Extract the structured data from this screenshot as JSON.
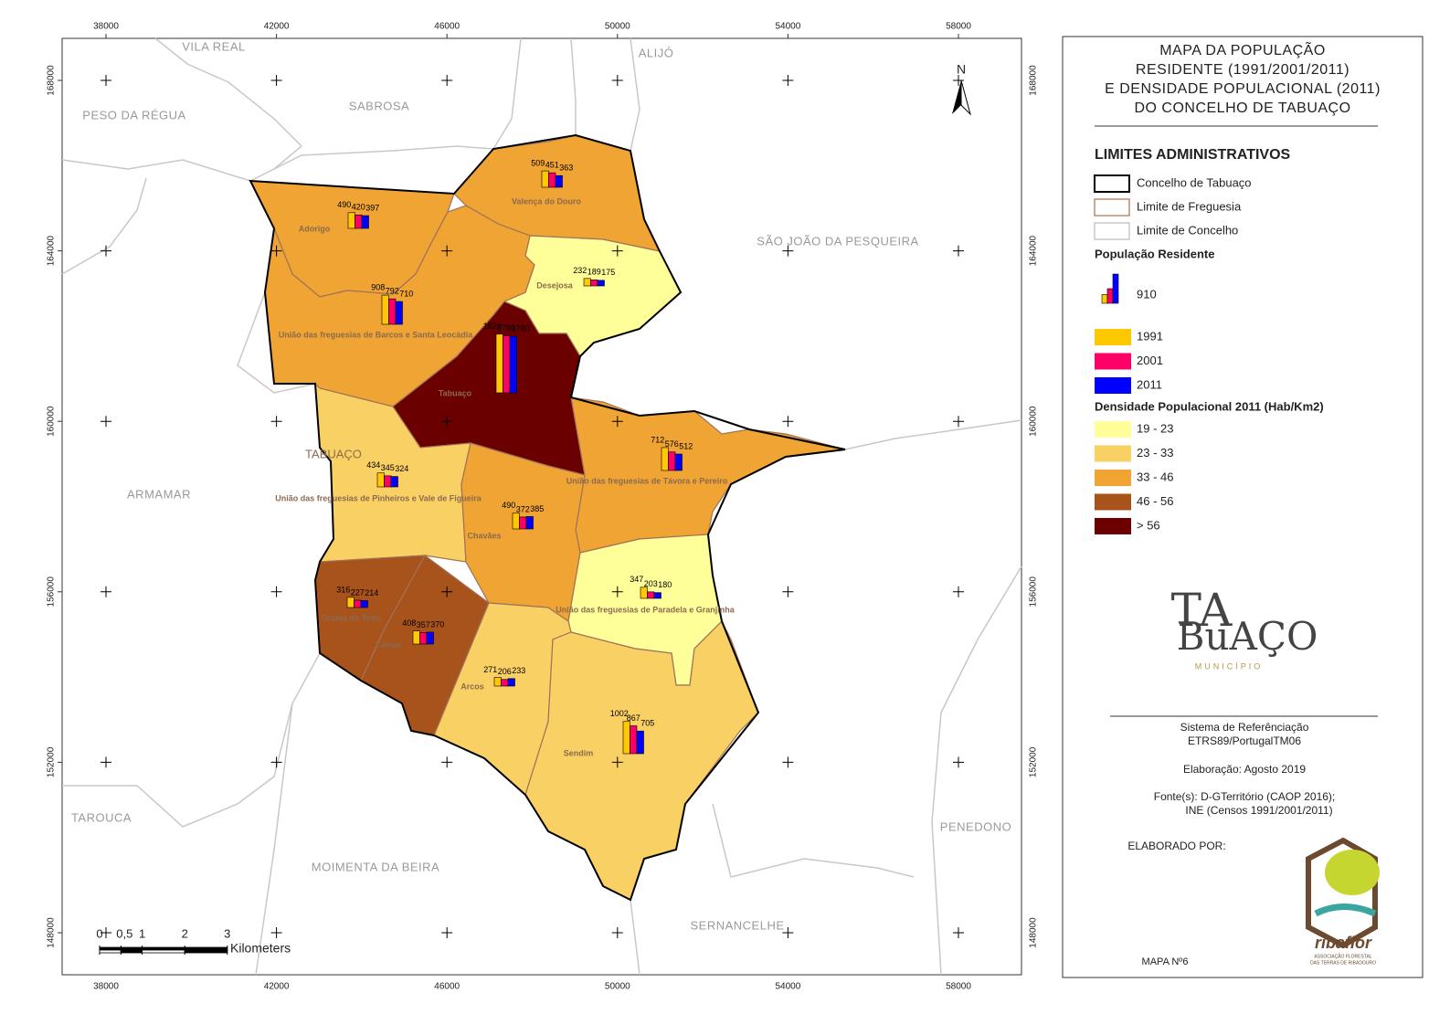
{
  "map": {
    "title": [
      "MAPA DA POPULAÇÃO",
      "RESIDENTE (1991/2001/2011)",
      "E DENSIDADE POPULACIONAL (2011)",
      "DO CONCELHO DE TABUAÇO"
    ],
    "x_ticks": [
      38000,
      42000,
      46000,
      50000,
      54000,
      58000
    ],
    "y_ticks": [
      148000,
      152000,
      156000,
      160000,
      164000,
      168000
    ],
    "north": "N",
    "concelho_label": "TABUAÇO",
    "neighbors": [
      "VILA REAL",
      "ALIJÓ",
      "PESO DA RÉGUA",
      "SABROSA",
      "SÃO JOÃO DA PESQUEIRA",
      "ARMAMAR",
      "TAROUCA",
      "MOIMENTA DA BEIRA",
      "SERNANCELHE",
      "PENEDONO"
    ],
    "parishes": [
      {
        "name": "Adorigo",
        "values": [
          490,
          420,
          397
        ],
        "class": 2
      },
      {
        "name": "Valença do Douro",
        "values": [
          509,
          451,
          363
        ],
        "class": 2
      },
      {
        "name": "Desejosa",
        "values": [
          232,
          189,
          175
        ],
        "class": 0
      },
      {
        "name": "União das freguesias de Barcos e Santa Leocádia",
        "values": [
          908,
          792,
          710
        ],
        "class": 2
      },
      {
        "name": "Tabuaço",
        "values": [
          1826,
          1780,
          1760
        ],
        "class": 4
      },
      {
        "name": "União das freguesias de Pinheiros e Vale de Figueira",
        "values": [
          434,
          345,
          324
        ],
        "class": 1
      },
      {
        "name": "União das freguesias de Távora e Pereiro",
        "values": [
          712,
          576,
          512
        ],
        "class": 2
      },
      {
        "name": "Chavães",
        "values": [
          490,
          372,
          385
        ],
        "class": 2
      },
      {
        "name": "União das freguesias de Paradela e Granjinha",
        "values": [
          347,
          203,
          180
        ],
        "class": 0
      },
      {
        "name": "Granja do Tedo",
        "values": [
          316,
          227,
          214
        ],
        "class": 3
      },
      {
        "name": "Longa",
        "values": [
          408,
          357,
          370
        ],
        "class": 3
      },
      {
        "name": "Arcos",
        "values": [
          271,
          206,
          233
        ],
        "class": 1
      },
      {
        "name": "Sendim",
        "values": [
          1002,
          867,
          705
        ],
        "class": 1
      }
    ],
    "scale": {
      "ticks": [
        0,
        {
          "value": 0.5,
          "label": "0,5"
        },
        1,
        2,
        3
      ],
      "unit": "Kilometers"
    }
  },
  "legend": {
    "limits_title": "LIMITES ADMINISTRATIVOS",
    "limits": [
      {
        "label": "Concelho de Tabuaço",
        "color": "#000000"
      },
      {
        "label": "Limite de Freguesia",
        "color": "#c08a6a"
      },
      {
        "label": "Limite de Concelho",
        "color": "#c8c8c8"
      }
    ],
    "population_title": "População Residente",
    "population_reference": 910,
    "years": [
      {
        "label": "1991",
        "color": "#ffc800"
      },
      {
        "label": "2001",
        "color": "#ff0066"
      },
      {
        "label": "2011",
        "color": "#0000ff"
      }
    ],
    "density_title": "Densidade Populacional 2011 (Hab/Km2)",
    "density_classes": [
      {
        "label": "19 - 23",
        "color": "#ffff99"
      },
      {
        "label": "23 - 33",
        "color": "#f9d064"
      },
      {
        "label": "33 - 46",
        "color": "#efa433"
      },
      {
        "label": "46 - 56",
        "color": "#a8531b"
      },
      {
        "label": "> 56",
        "color": "#6b0000"
      }
    ]
  },
  "logo": {
    "lines": [
      "TA",
      "BuAÇO",
      "MUNICÍPIO"
    ]
  },
  "footer": {
    "reference": [
      "Sistema de Referênciação",
      "ETRS89/PortugalTM06"
    ],
    "date": "Elaboração: Agosto 2019",
    "sources": [
      "Fonte(s): D-GTerritório (CAOP 2016);",
      "INE (Censos 1991/2001/2011)"
    ],
    "made_by": "ELABORADO POR:",
    "map_number": "MAPA Nº6",
    "org": "ribaflor",
    "org_sub": [
      "ASSOCIAÇÃO FLORESTAL",
      "DAS TERRAS DE RIBADOURO"
    ]
  }
}
